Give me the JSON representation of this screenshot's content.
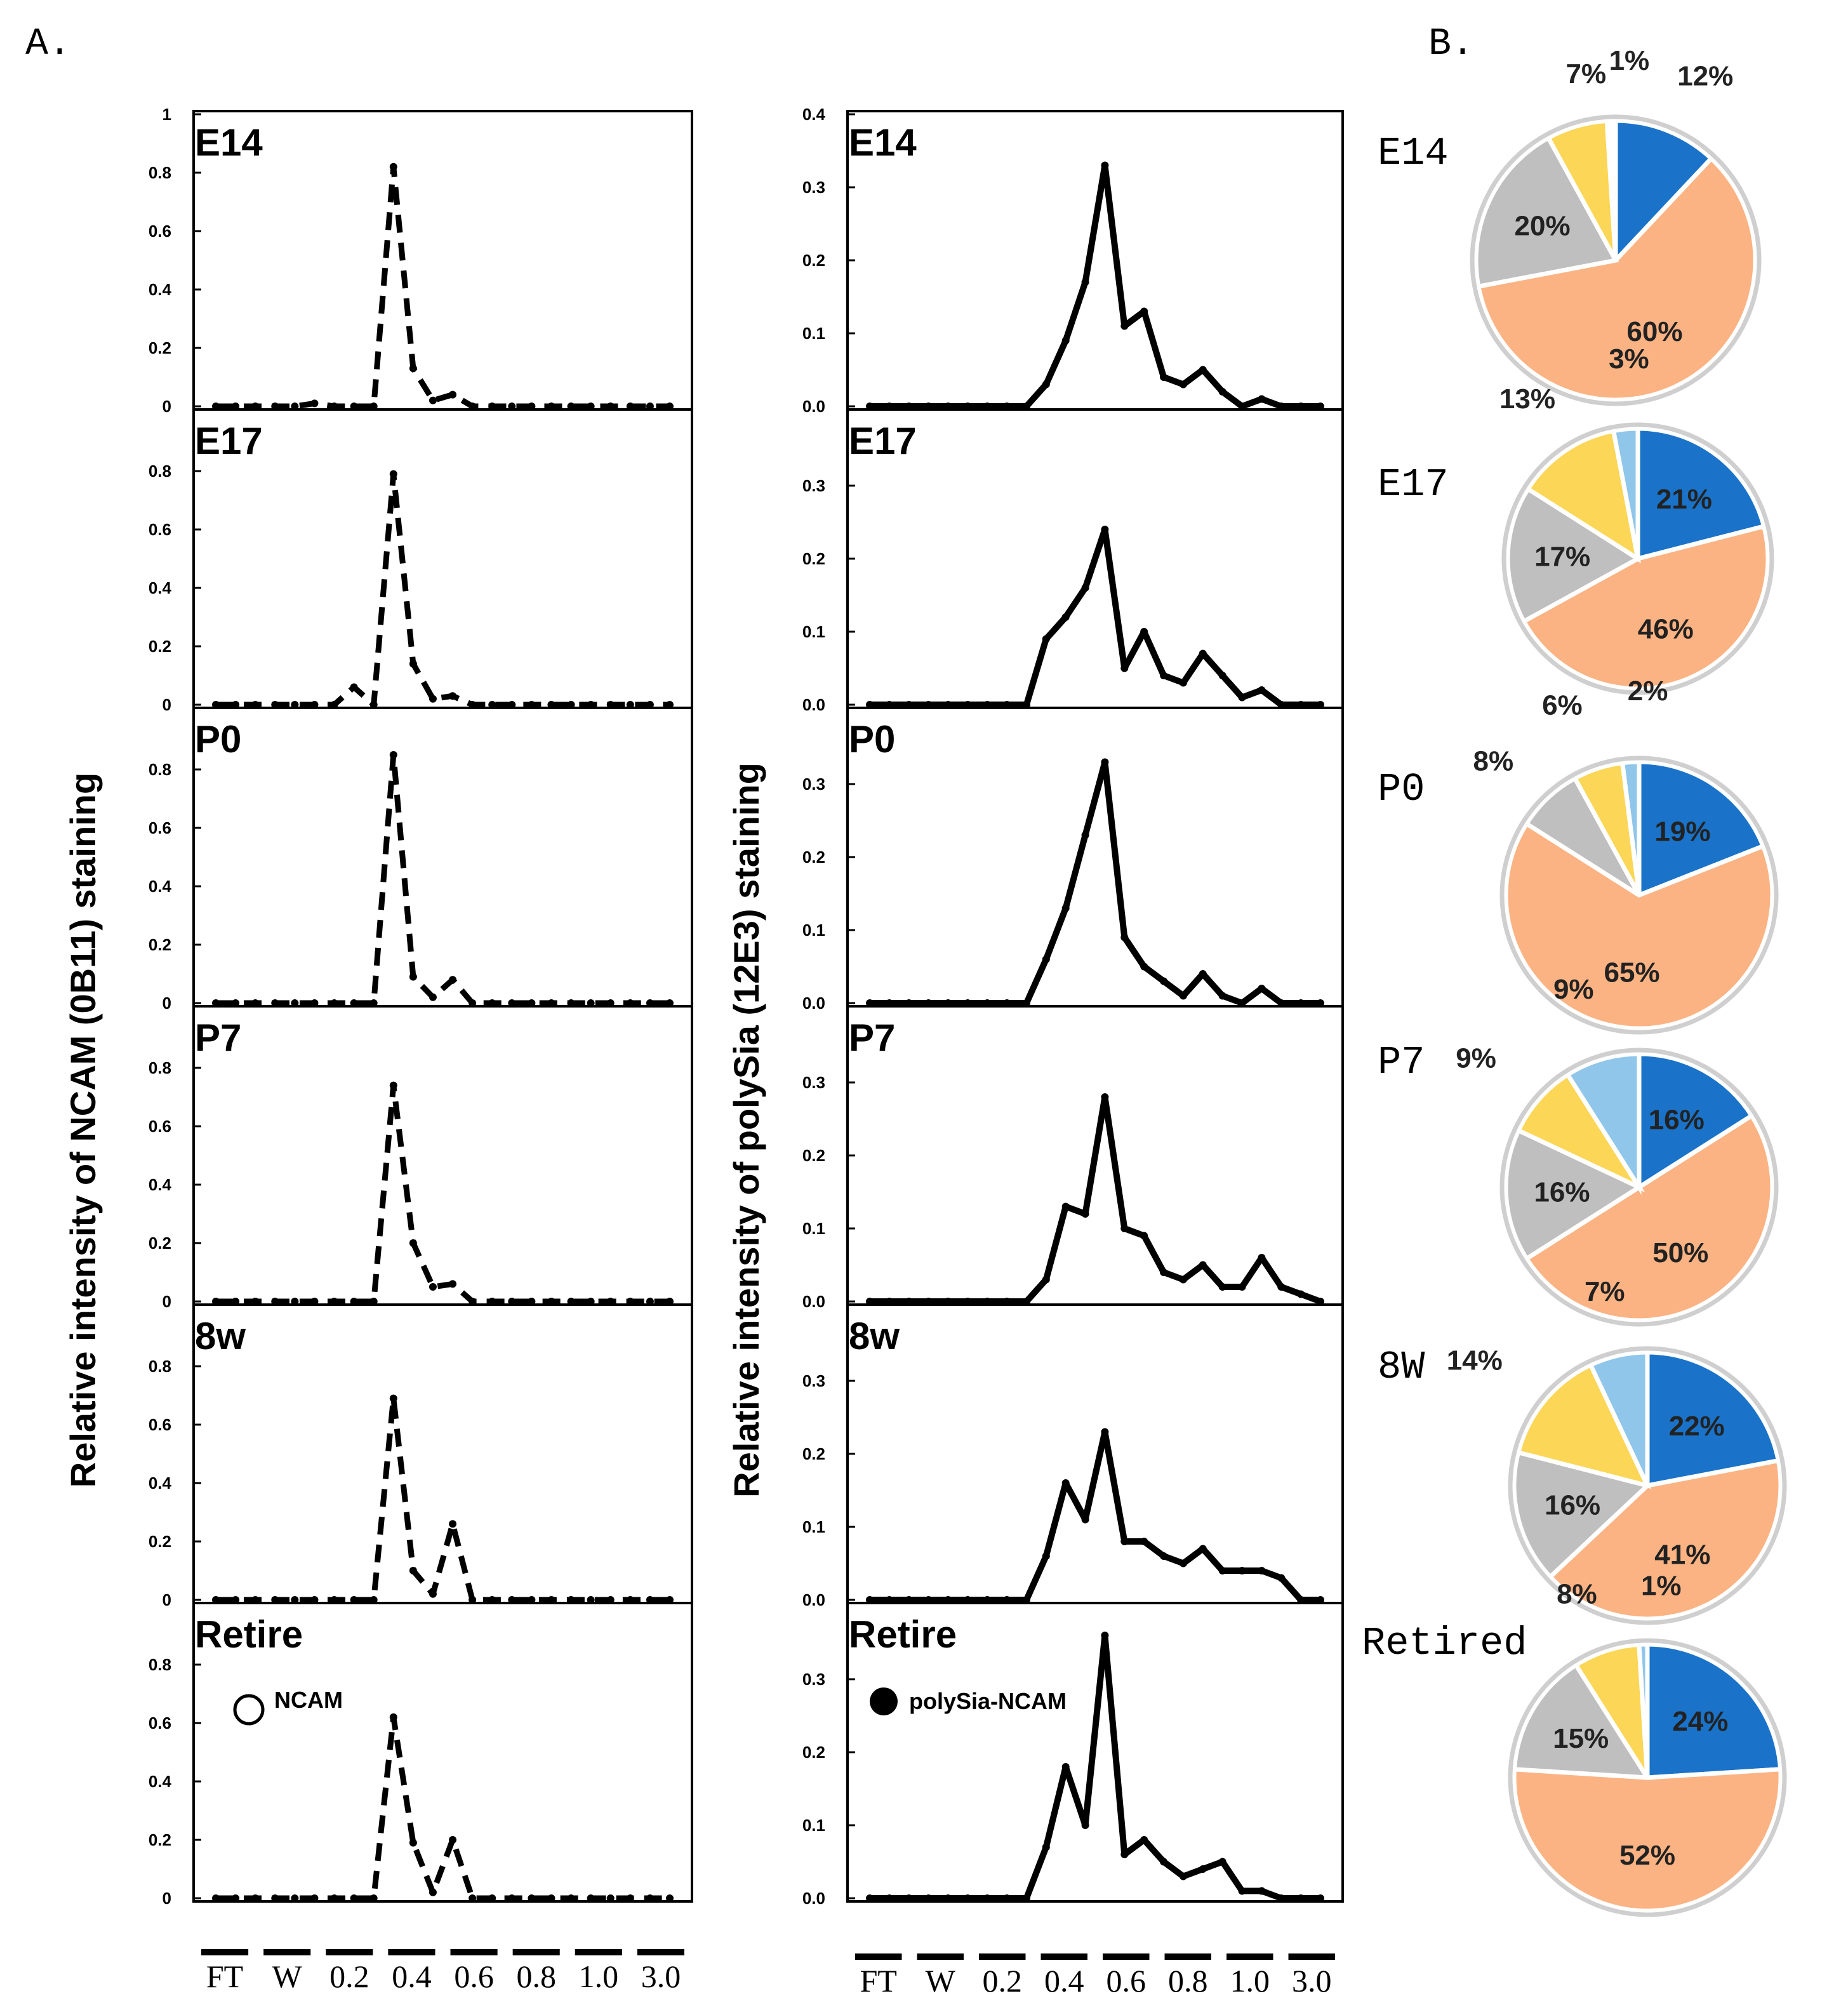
{
  "labels": {
    "section_a": "A.",
    "section_b": "B."
  },
  "x_fractions": [
    "FT",
    "W",
    "0.2",
    "0.4",
    "0.6",
    "0.8",
    "1.0",
    "3.0"
  ],
  "colors": {
    "dark_blue": "#1a73c8",
    "orange": "#fbb383",
    "gray": "#bfbfbf",
    "yellow": "#fbd657",
    "light_blue": "#8fc6ea",
    "white": "#ffffff"
  },
  "chart_data": [
    {
      "type": "line",
      "id": "ncam",
      "ylabel": "Relative intensity of NCAM (0B11) staining",
      "legend": "NCAM",
      "legend_marker": "open-circle",
      "line_style": "dashed",
      "x": [
        1,
        2,
        3,
        4,
        5,
        6,
        7,
        8,
        9,
        10,
        11,
        12,
        13,
        14,
        15,
        16,
        17,
        18,
        19,
        20,
        21,
        22,
        23,
        24
      ],
      "panels": [
        {
          "name": "E14",
          "ylim": [
            0,
            1
          ],
          "ticks": [
            "0",
            "0.2",
            "0.4",
            "0.6",
            "0.8",
            "1"
          ],
          "tick_values": [
            0,
            0.2,
            0.4,
            0.6,
            0.8,
            1
          ],
          "values": [
            0,
            0,
            0,
            0,
            0,
            0.01,
            0,
            0,
            0,
            0.82,
            0.13,
            0.02,
            0.04,
            0,
            0,
            0,
            0,
            0,
            0,
            0,
            0,
            0,
            0,
            0
          ]
        },
        {
          "name": "E17",
          "ylim": [
            0,
            1
          ],
          "ticks": [
            "0",
            "0.2",
            "0.4",
            "0.6",
            "0.8"
          ],
          "tick_values": [
            0,
            0.2,
            0.4,
            0.6,
            0.8
          ],
          "values": [
            0,
            0,
            0,
            0,
            0,
            0,
            0,
            0.06,
            0,
            0.79,
            0.14,
            0.02,
            0.03,
            0,
            0,
            0,
            0,
            0,
            0,
            0,
            0,
            0,
            0,
            0
          ]
        },
        {
          "name": "P0",
          "ylim": [
            0,
            1
          ],
          "ticks": [
            "0",
            "0.2",
            "0.4",
            "0.6",
            "0.8"
          ],
          "tick_values": [
            0,
            0.2,
            0.4,
            0.6,
            0.8
          ],
          "values": [
            0,
            0,
            0,
            0,
            0,
            0,
            0,
            0,
            0,
            0.85,
            0.09,
            0.02,
            0.08,
            0,
            0,
            0,
            0,
            0,
            0,
            0,
            0,
            0,
            0,
            0
          ]
        },
        {
          "name": "P7",
          "ylim": [
            0,
            1
          ],
          "ticks": [
            "0",
            "0.2",
            "0.4",
            "0.6",
            "0.8"
          ],
          "tick_values": [
            0,
            0.2,
            0.4,
            0.6,
            0.8
          ],
          "values": [
            0,
            0,
            0,
            0,
            0,
            0,
            0,
            0,
            0,
            0.74,
            0.2,
            0.05,
            0.06,
            0,
            0,
            0,
            0,
            0,
            0,
            0,
            0,
            0,
            0,
            0
          ]
        },
        {
          "name": "8w",
          "ylim": [
            0,
            1
          ],
          "ticks": [
            "0",
            "0.2",
            "0.4",
            "0.6",
            "0.8"
          ],
          "tick_values": [
            0,
            0.2,
            0.4,
            0.6,
            0.8
          ],
          "values": [
            0,
            0,
            0,
            0,
            0,
            0,
            0,
            0,
            0,
            0.69,
            0.1,
            0.02,
            0.26,
            0,
            0,
            0,
            0,
            0,
            0,
            0,
            0,
            0,
            0,
            0
          ]
        },
        {
          "name": "Retire",
          "ylim": [
            0,
            1
          ],
          "ticks": [
            "0",
            "0.2",
            "0.4",
            "0.6",
            "0.8"
          ],
          "tick_values": [
            0,
            0.2,
            0.4,
            0.6,
            0.8
          ],
          "values": [
            0,
            0,
            0,
            0,
            0,
            0,
            0,
            0,
            0,
            0.62,
            0.19,
            0.02,
            0.2,
            0,
            0,
            0,
            0,
            0,
            0,
            0,
            0,
            0,
            0,
            0
          ]
        }
      ]
    },
    {
      "type": "line",
      "id": "polysia",
      "ylabel": "Relative intensity of polySia (12E3) staining",
      "legend": "polySia-NCAM",
      "legend_marker": "filled-circle",
      "line_style": "solid",
      "x": [
        1,
        2,
        3,
        4,
        5,
        6,
        7,
        8,
        9,
        10,
        11,
        12,
        13,
        14,
        15,
        16,
        17,
        18,
        19,
        20,
        21,
        22,
        23,
        24
      ],
      "panels": [
        {
          "name": "E14",
          "ylim": [
            0,
            0.4
          ],
          "ticks": [
            "0.0",
            "0.1",
            "0.2",
            "0.3",
            "0.4"
          ],
          "tick_values": [
            0,
            0.1,
            0.2,
            0.3,
            0.4
          ],
          "values": [
            0,
            0,
            0,
            0,
            0,
            0,
            0,
            0,
            0,
            0.03,
            0.09,
            0.17,
            0.33,
            0.11,
            0.13,
            0.04,
            0.03,
            0.05,
            0.02,
            0,
            0.01,
            0,
            0,
            0
          ]
        },
        {
          "name": "E17",
          "ylim": [
            0,
            0.4
          ],
          "ticks": [
            "0.0",
            "0.1",
            "0.2",
            "0.3"
          ],
          "tick_values": [
            0,
            0.1,
            0.2,
            0.3
          ],
          "values": [
            0,
            0,
            0,
            0,
            0,
            0,
            0,
            0,
            0,
            0.09,
            0.12,
            0.16,
            0.24,
            0.05,
            0.1,
            0.04,
            0.03,
            0.07,
            0.04,
            0.01,
            0.02,
            0,
            0,
            0
          ]
        },
        {
          "name": "P0",
          "ylim": [
            0,
            0.4
          ],
          "ticks": [
            "0.0",
            "0.1",
            "0.2",
            "0.3"
          ],
          "tick_values": [
            0,
            0.1,
            0.2,
            0.3
          ],
          "values": [
            0,
            0,
            0,
            0,
            0,
            0,
            0,
            0,
            0,
            0.06,
            0.13,
            0.23,
            0.33,
            0.09,
            0.05,
            0.03,
            0.01,
            0.04,
            0.01,
            0,
            0.02,
            0,
            0,
            0
          ]
        },
        {
          "name": "P7",
          "ylim": [
            0,
            0.4
          ],
          "ticks": [
            "0.0",
            "0.1",
            "0.2",
            "0.3"
          ],
          "tick_values": [
            0,
            0.1,
            0.2,
            0.3
          ],
          "values": [
            0,
            0,
            0,
            0,
            0,
            0,
            0,
            0,
            0,
            0.03,
            0.13,
            0.12,
            0.28,
            0.1,
            0.09,
            0.04,
            0.03,
            0.05,
            0.02,
            0.02,
            0.06,
            0.02,
            0.01,
            0
          ]
        },
        {
          "name": "8w",
          "ylim": [
            0,
            0.4
          ],
          "ticks": [
            "0.0",
            "0.1",
            "0.2",
            "0.3"
          ],
          "tick_values": [
            0,
            0.1,
            0.2,
            0.3
          ],
          "values": [
            0,
            0,
            0,
            0,
            0,
            0,
            0,
            0,
            0,
            0.06,
            0.16,
            0.11,
            0.23,
            0.08,
            0.08,
            0.06,
            0.05,
            0.07,
            0.04,
            0.04,
            0.04,
            0.03,
            0,
            0
          ]
        },
        {
          "name": "Retire",
          "ylim": [
            0,
            0.4
          ],
          "ticks": [
            "0.0",
            "0.1",
            "0.2",
            "0.3"
          ],
          "tick_values": [
            0,
            0.1,
            0.2,
            0.3
          ],
          "values": [
            0,
            0,
            0,
            0,
            0,
            0,
            0,
            0,
            0,
            0.07,
            0.18,
            0.1,
            0.36,
            0.06,
            0.08,
            0.05,
            0.03,
            0.04,
            0.05,
            0.01,
            0.01,
            0,
            0,
            0
          ]
        }
      ]
    },
    {
      "type": "pie",
      "id": "composition",
      "pies": [
        {
          "name": "E14",
          "slices": [
            {
              "label": "12%",
              "value": 12,
              "color": "dark_blue"
            },
            {
              "label": "60%",
              "value": 60,
              "color": "orange"
            },
            {
              "label": "20%",
              "value": 20,
              "color": "gray"
            },
            {
              "label": "7%",
              "value": 7,
              "color": "yellow"
            },
            {
              "label": "1%",
              "value": 1,
              "color": "white"
            }
          ]
        },
        {
          "name": "E17",
          "slices": [
            {
              "label": "21%",
              "value": 21,
              "color": "dark_blue"
            },
            {
              "label": "46%",
              "value": 46,
              "color": "orange"
            },
            {
              "label": "17%",
              "value": 17,
              "color": "gray"
            },
            {
              "label": "13%",
              "value": 13,
              "color": "yellow"
            },
            {
              "label": "3%",
              "value": 3,
              "color": "light_blue"
            }
          ]
        },
        {
          "name": "P0",
          "slices": [
            {
              "label": "19%",
              "value": 19,
              "color": "dark_blue"
            },
            {
              "label": "65%",
              "value": 65,
              "color": "orange"
            },
            {
              "label": "8%",
              "value": 8,
              "color": "gray"
            },
            {
              "label": "6%",
              "value": 6,
              "color": "yellow"
            },
            {
              "label": "2%",
              "value": 2,
              "color": "light_blue"
            }
          ]
        },
        {
          "name": "P7",
          "slices": [
            {
              "label": "16%",
              "value": 16,
              "color": "dark_blue"
            },
            {
              "label": "50%",
              "value": 50,
              "color": "orange"
            },
            {
              "label": "16%",
              "value": 16,
              "color": "gray"
            },
            {
              "label": "9%",
              "value": 9,
              "color": "yellow"
            },
            {
              "label": "9%",
              "value": 9,
              "color": "light_blue"
            }
          ]
        },
        {
          "name": "8W",
          "slices": [
            {
              "label": "22%",
              "value": 22,
              "color": "dark_blue"
            },
            {
              "label": "41%",
              "value": 41,
              "color": "orange"
            },
            {
              "label": "16%",
              "value": 16,
              "color": "gray"
            },
            {
              "label": "14%",
              "value": 14,
              "color": "yellow"
            },
            {
              "label": "7%",
              "value": 7,
              "color": "light_blue"
            }
          ]
        },
        {
          "name": "Retired",
          "slices": [
            {
              "label": "24%",
              "value": 24,
              "color": "dark_blue"
            },
            {
              "label": "52%",
              "value": 52,
              "color": "orange"
            },
            {
              "label": "15%",
              "value": 15,
              "color": "gray"
            },
            {
              "label": "8%",
              "value": 8,
              "color": "yellow"
            },
            {
              "label": "1%",
              "value": 1,
              "color": "light_blue"
            }
          ]
        }
      ]
    }
  ]
}
